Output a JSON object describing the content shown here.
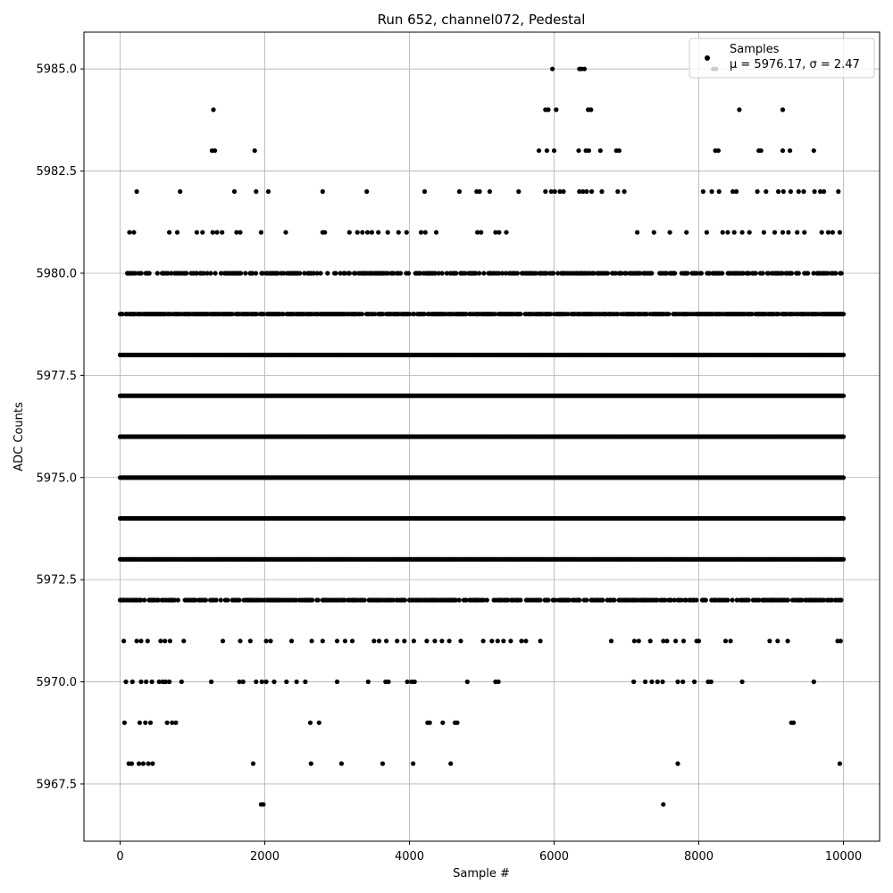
{
  "chart_data": {
    "type": "scatter",
    "title": "Run 652, channel072, Pedestal",
    "xlabel": "Sample #",
    "ylabel": "ADC Counts",
    "xlim": [
      -500,
      10500
    ],
    "ylim": [
      5966.1,
      5985.9
    ],
    "x_ticks": [
      0,
      2000,
      4000,
      6000,
      8000,
      10000
    ],
    "y_ticks": [
      5967.5,
      5970.0,
      5972.5,
      5975.0,
      5977.5,
      5980.0,
      5982.5,
      5985.0
    ],
    "x_tick_labels": [
      "0",
      "2000",
      "4000",
      "6000",
      "8000",
      "10000"
    ],
    "y_tick_labels": [
      "5967.5",
      "5970.0",
      "5972.5",
      "5975.0",
      "5977.5",
      "5980.0",
      "5982.5",
      "5985.0"
    ],
    "grid": true,
    "legend_position": "top-right",
    "n_samples": 10000,
    "series": [
      {
        "name": "Samples",
        "stats_label": "μ = 5976.17, σ = 2.47",
        "color": "#000000",
        "marker": "circle",
        "mean": 5976.17,
        "sigma": 2.47,
        "dense_levels": [
          {
            "y": 5978,
            "x_range": [
              0,
              10000
            ]
          },
          {
            "y": 5977,
            "x_range": [
              0,
              10000
            ]
          },
          {
            "y": 5976,
            "x_range": [
              0,
              10000
            ]
          },
          {
            "y": 5975,
            "x_range": [
              0,
              10000
            ]
          },
          {
            "y": 5974,
            "x_range": [
              0,
              10000
            ]
          },
          {
            "y": 5973,
            "x_range": [
              0,
              10000
            ]
          }
        ],
        "medium_levels": [
          {
            "y": 5979,
            "x_range": [
              0,
              10000
            ],
            "fill": 0.78
          },
          {
            "y": 5972,
            "x_range": [
              0,
              10000
            ],
            "fill": 0.62
          },
          {
            "y": 5980,
            "x_range": [
              100,
              10000
            ],
            "fill": 0.55
          }
        ],
        "sparse_points": [
          [
            5976,
            5985
          ],
          [
            6350,
            5985
          ],
          [
            6380,
            5985
          ],
          [
            6420,
            5985
          ],
          [
            8200,
            5985
          ],
          [
            8240,
            5985
          ],
          [
            1290,
            5984
          ],
          [
            5880,
            5984
          ],
          [
            5920,
            5984
          ],
          [
            6030,
            5984
          ],
          [
            6470,
            5984
          ],
          [
            6510,
            5984
          ],
          [
            8560,
            5984
          ],
          [
            9160,
            5984
          ],
          [
            1270,
            5983
          ],
          [
            1310,
            5983
          ],
          [
            1860,
            5983
          ],
          [
            5790,
            5983
          ],
          [
            5900,
            5983
          ],
          [
            6000,
            5983
          ],
          [
            6340,
            5983
          ],
          [
            6440,
            5983
          ],
          [
            6480,
            5983
          ],
          [
            6640,
            5983
          ],
          [
            6860,
            5983
          ],
          [
            6900,
            5983
          ],
          [
            8230,
            5983
          ],
          [
            8270,
            5983
          ],
          [
            8830,
            5983
          ],
          [
            8860,
            5983
          ],
          [
            9160,
            5983
          ],
          [
            9260,
            5983
          ],
          [
            9590,
            5983
          ],
          [
            230,
            5982
          ],
          [
            830,
            5982
          ],
          [
            1580,
            5982
          ],
          [
            1880,
            5982
          ],
          [
            2050,
            5982
          ],
          [
            2800,
            5982
          ],
          [
            3410,
            5982
          ],
          [
            4210,
            5982
          ],
          [
            4690,
            5982
          ],
          [
            4930,
            5982
          ],
          [
            4970,
            5982
          ],
          [
            5110,
            5982
          ],
          [
            5510,
            5982
          ],
          [
            5880,
            5982
          ],
          [
            5960,
            5982
          ],
          [
            6010,
            5982
          ],
          [
            6080,
            5982
          ],
          [
            6130,
            5982
          ],
          [
            6350,
            5982
          ],
          [
            6400,
            5982
          ],
          [
            6450,
            5982
          ],
          [
            6520,
            5982
          ],
          [
            6660,
            5982
          ],
          [
            6880,
            5982
          ],
          [
            6970,
            5982
          ],
          [
            8060,
            5982
          ],
          [
            8180,
            5982
          ],
          [
            8280,
            5982
          ],
          [
            8470,
            5982
          ],
          [
            8520,
            5982
          ],
          [
            8810,
            5982
          ],
          [
            8930,
            5982
          ],
          [
            9100,
            5982
          ],
          [
            9170,
            5982
          ],
          [
            9270,
            5982
          ],
          [
            9380,
            5982
          ],
          [
            9450,
            5982
          ],
          [
            9600,
            5982
          ],
          [
            9680,
            5982
          ],
          [
            9730,
            5982
          ],
          [
            9930,
            5982
          ],
          [
            130,
            5981
          ],
          [
            190,
            5981
          ],
          [
            680,
            5981
          ],
          [
            790,
            5981
          ],
          [
            1060,
            5981
          ],
          [
            1140,
            5981
          ],
          [
            1280,
            5981
          ],
          [
            1340,
            5981
          ],
          [
            1410,
            5981
          ],
          [
            1610,
            5981
          ],
          [
            1660,
            5981
          ],
          [
            1950,
            5981
          ],
          [
            2290,
            5981
          ],
          [
            2800,
            5981
          ],
          [
            2830,
            5981
          ],
          [
            3170,
            5981
          ],
          [
            3280,
            5981
          ],
          [
            3350,
            5981
          ],
          [
            3420,
            5981
          ],
          [
            3480,
            5981
          ],
          [
            3570,
            5981
          ],
          [
            3700,
            5981
          ],
          [
            3850,
            5981
          ],
          [
            3960,
            5981
          ],
          [
            4160,
            5981
          ],
          [
            4220,
            5981
          ],
          [
            4370,
            5981
          ],
          [
            4940,
            5981
          ],
          [
            4990,
            5981
          ],
          [
            5190,
            5981
          ],
          [
            5240,
            5981
          ],
          [
            5340,
            5981
          ],
          [
            7150,
            5981
          ],
          [
            7380,
            5981
          ],
          [
            7600,
            5981
          ],
          [
            7830,
            5981
          ],
          [
            8110,
            5981
          ],
          [
            8330,
            5981
          ],
          [
            8400,
            5981
          ],
          [
            8490,
            5981
          ],
          [
            8600,
            5981
          ],
          [
            8700,
            5981
          ],
          [
            8900,
            5981
          ],
          [
            9050,
            5981
          ],
          [
            9160,
            5981
          ],
          [
            9240,
            5981
          ],
          [
            9360,
            5981
          ],
          [
            9460,
            5981
          ],
          [
            9700,
            5981
          ],
          [
            9790,
            5981
          ],
          [
            9850,
            5981
          ],
          [
            9950,
            5981
          ],
          [
            50,
            5971
          ],
          [
            230,
            5971
          ],
          [
            290,
            5971
          ],
          [
            380,
            5971
          ],
          [
            560,
            5971
          ],
          [
            620,
            5971
          ],
          [
            690,
            5971
          ],
          [
            880,
            5971
          ],
          [
            1420,
            5971
          ],
          [
            1660,
            5971
          ],
          [
            1800,
            5971
          ],
          [
            2020,
            5971
          ],
          [
            2080,
            5971
          ],
          [
            2370,
            5971
          ],
          [
            2650,
            5971
          ],
          [
            2800,
            5971
          ],
          [
            3000,
            5971
          ],
          [
            3110,
            5971
          ],
          [
            3210,
            5971
          ],
          [
            3510,
            5971
          ],
          [
            3580,
            5971
          ],
          [
            3680,
            5971
          ],
          [
            3830,
            5971
          ],
          [
            3930,
            5971
          ],
          [
            4060,
            5971
          ],
          [
            4240,
            5971
          ],
          [
            4350,
            5971
          ],
          [
            4450,
            5971
          ],
          [
            4550,
            5971
          ],
          [
            4710,
            5971
          ],
          [
            5020,
            5971
          ],
          [
            5140,
            5971
          ],
          [
            5220,
            5971
          ],
          [
            5300,
            5971
          ],
          [
            5400,
            5971
          ],
          [
            5550,
            5971
          ],
          [
            5610,
            5971
          ],
          [
            5810,
            5971
          ],
          [
            6790,
            5971
          ],
          [
            7110,
            5971
          ],
          [
            7170,
            5971
          ],
          [
            7330,
            5971
          ],
          [
            7510,
            5971
          ],
          [
            7560,
            5971
          ],
          [
            7680,
            5971
          ],
          [
            7790,
            5971
          ],
          [
            7970,
            5971
          ],
          [
            8000,
            5971
          ],
          [
            8370,
            5971
          ],
          [
            8440,
            5971
          ],
          [
            8980,
            5971
          ],
          [
            9090,
            5971
          ],
          [
            9230,
            5971
          ],
          [
            9920,
            5971
          ],
          [
            9960,
            5971
          ],
          [
            80,
            5970
          ],
          [
            170,
            5970
          ],
          [
            290,
            5970
          ],
          [
            360,
            5970
          ],
          [
            440,
            5970
          ],
          [
            540,
            5970
          ],
          [
            590,
            5970
          ],
          [
            630,
            5970
          ],
          [
            680,
            5970
          ],
          [
            850,
            5970
          ],
          [
            1260,
            5970
          ],
          [
            1650,
            5970
          ],
          [
            1700,
            5970
          ],
          [
            1880,
            5970
          ],
          [
            1960,
            5970
          ],
          [
            2020,
            5970
          ],
          [
            2130,
            5970
          ],
          [
            2300,
            5970
          ],
          [
            2440,
            5970
          ],
          [
            2560,
            5970
          ],
          [
            3000,
            5970
          ],
          [
            3430,
            5970
          ],
          [
            3670,
            5970
          ],
          [
            3710,
            5970
          ],
          [
            3970,
            5970
          ],
          [
            4030,
            5970
          ],
          [
            4070,
            5970
          ],
          [
            4800,
            5970
          ],
          [
            5190,
            5970
          ],
          [
            5230,
            5970
          ],
          [
            7100,
            5970
          ],
          [
            7260,
            5970
          ],
          [
            7350,
            5970
          ],
          [
            7430,
            5970
          ],
          [
            7500,
            5970
          ],
          [
            7710,
            5970
          ],
          [
            7780,
            5970
          ],
          [
            7940,
            5970
          ],
          [
            8130,
            5970
          ],
          [
            8170,
            5970
          ],
          [
            8600,
            5970
          ],
          [
            9590,
            5970
          ],
          [
            60,
            5969
          ],
          [
            270,
            5969
          ],
          [
            350,
            5969
          ],
          [
            420,
            5969
          ],
          [
            650,
            5969
          ],
          [
            720,
            5969
          ],
          [
            770,
            5969
          ],
          [
            2630,
            5969
          ],
          [
            2750,
            5969
          ],
          [
            4250,
            5969
          ],
          [
            4280,
            5969
          ],
          [
            4460,
            5969
          ],
          [
            4630,
            5969
          ],
          [
            4660,
            5969
          ],
          [
            9280,
            5969
          ],
          [
            9310,
            5969
          ],
          [
            120,
            5968
          ],
          [
            160,
            5968
          ],
          [
            260,
            5968
          ],
          [
            320,
            5968
          ],
          [
            390,
            5968
          ],
          [
            450,
            5968
          ],
          [
            1840,
            5968
          ],
          [
            2640,
            5968
          ],
          [
            3060,
            5968
          ],
          [
            3630,
            5968
          ],
          [
            4050,
            5968
          ],
          [
            4570,
            5968
          ],
          [
            7710,
            5968
          ],
          [
            9950,
            5968
          ],
          [
            1950,
            5967
          ],
          [
            1980,
            5967
          ],
          [
            7510,
            5967
          ]
        ]
      }
    ]
  }
}
